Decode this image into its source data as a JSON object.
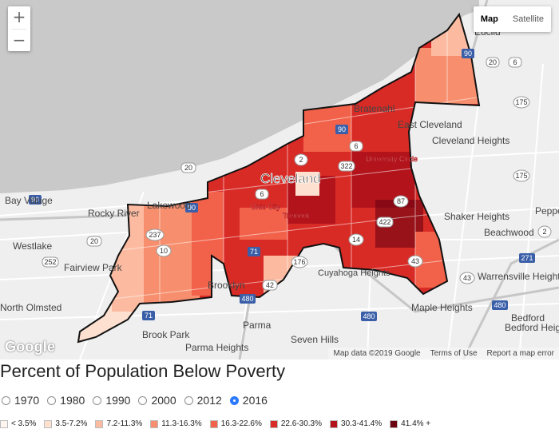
{
  "map": {
    "controls": {
      "zoom_in": "+",
      "zoom_out": "−"
    },
    "map_types": [
      {
        "label": "Map",
        "active": true
      },
      {
        "label": "Satellite",
        "active": false
      }
    ],
    "google_logo": "Google",
    "attribution": [
      "Map data ©2019 Google",
      "Terms of Use",
      "Report a map error"
    ],
    "place_labels": [
      "Euclid",
      "Bratenahl",
      "East Cleveland",
      "Cleveland Heights",
      "University Circle",
      "Cleveland",
      "Ohio City",
      "Tremont",
      "Bay Village",
      "Lakewood",
      "Rocky River",
      "Westlake",
      "Fairview Park",
      "North Olmsted",
      "Brooklyn",
      "Cuyahoga Heights",
      "Parma",
      "Brook Park",
      "Parma Heights",
      "Seven Hills",
      "Shaker Heights",
      "Beachwood",
      "Warrensville Heights",
      "Maple Heights",
      "Bedford Heights",
      "Bedford",
      "Peppe",
      "Clevel"
    ],
    "route_shields": [
      "90",
      "20",
      "6",
      "175",
      "90",
      "6",
      "322",
      "2",
      "20",
      "6",
      "87",
      "422",
      "14",
      "43",
      "71",
      "176",
      "42",
      "480",
      "10",
      "237",
      "90",
      "252",
      "20",
      "71",
      "480",
      "175",
      "271",
      "43",
      "480",
      "90",
      "2"
    ],
    "colors": {
      "water": "#c9c9c9",
      "land": "#efefef",
      "boundary": "#111111"
    }
  },
  "title": "Percent of Population Below Poverty",
  "years": [
    {
      "label": "1970",
      "checked": false
    },
    {
      "label": "1980",
      "checked": false
    },
    {
      "label": "1990",
      "checked": false
    },
    {
      "label": "2000",
      "checked": false
    },
    {
      "label": "2012",
      "checked": false
    },
    {
      "label": "2016",
      "checked": true
    }
  ],
  "legend": [
    {
      "label": "< 3.5%",
      "color": "#fff5f0"
    },
    {
      "label": "3.5-7.2%",
      "color": "#fde0cf"
    },
    {
      "label": "7.2-11.3%",
      "color": "#fcbba1"
    },
    {
      "label": "11.3-16.3%",
      "color": "#f78f6e"
    },
    {
      "label": "16.3-22.6%",
      "color": "#f2624a"
    },
    {
      "label": "22.6-30.3%",
      "color": "#d92b26"
    },
    {
      "label": "30.3-41.4%",
      "color": "#b3141c"
    },
    {
      "label": "41.4% +",
      "color": "#6b0210"
    }
  ]
}
